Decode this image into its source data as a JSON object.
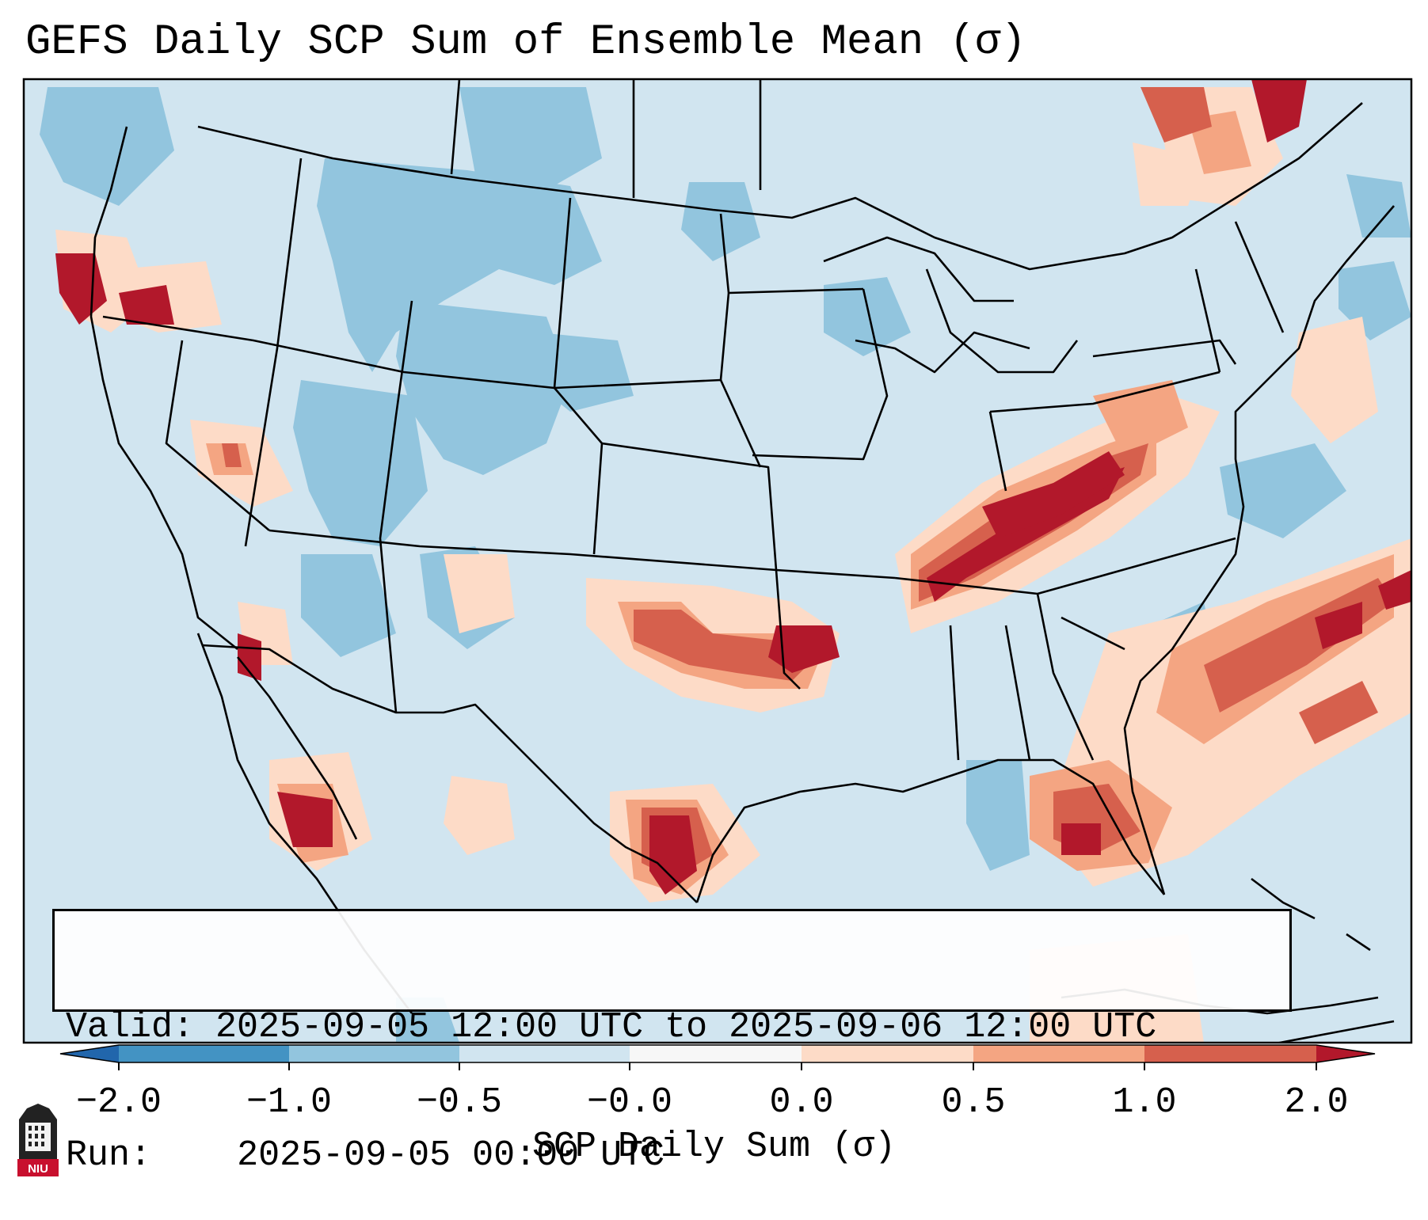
{
  "title": "GEFS Daily SCP Sum of Ensemble Mean (σ)",
  "info": {
    "valid_label": "Valid:",
    "valid_value": "2025-09-05 12:00 UTC to 2025-09-06 12:00 UTC",
    "run_label": "Run:",
    "run_value": "2025-09-05 00:00 UTC"
  },
  "colorbar": {
    "label": "SCP Daily Sum (σ)",
    "ticks": [
      "−2.0",
      "−1.0",
      "−0.5",
      "−0.0",
      "0.0",
      "0.5",
      "1.0",
      "2.0"
    ],
    "colors": {
      "extend_low": "#2166ac",
      "bin1": "#4393c3",
      "bin2": "#92c5de",
      "bin3": "#d1e5f0",
      "bin4": "#f7f7f7",
      "bin5": "#fddbc7",
      "bin6": "#f4a582",
      "bin7": "#d6604d",
      "extend_high": "#b2182b"
    }
  },
  "logo": {
    "text": "NIU",
    "icon": "niu-logo-icon"
  },
  "map_legend_colors": {
    "background": "#d1e5f0",
    "light_blue": "#92c5de",
    "light_red": "#fddbc7",
    "mid_red": "#f4a582",
    "red": "#d6604d",
    "dark_red": "#b2182b"
  }
}
